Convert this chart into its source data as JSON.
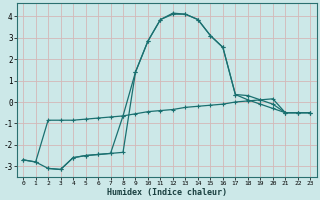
{
  "xlabel": "Humidex (Indice chaleur)",
  "bg_color": "#cce8e8",
  "grid_color": "#d4b8b8",
  "line_color": "#1a7070",
  "xlim": [
    -0.5,
    23.5
  ],
  "ylim": [
    -3.5,
    4.6
  ],
  "xticks": [
    0,
    1,
    2,
    3,
    4,
    5,
    6,
    7,
    8,
    9,
    10,
    11,
    12,
    13,
    14,
    15,
    16,
    17,
    18,
    19,
    20,
    21,
    22,
    23
  ],
  "yticks": [
    -3,
    -2,
    -1,
    0,
    1,
    2,
    3,
    4
  ],
  "series1_x": [
    0,
    1,
    2,
    3,
    4,
    5,
    6,
    7,
    8,
    9,
    10,
    11,
    12,
    13,
    14,
    15,
    16,
    17,
    18,
    19,
    20,
    21,
    22,
    23
  ],
  "series1_y": [
    -2.7,
    -2.8,
    -0.85,
    -0.85,
    -0.85,
    -0.8,
    -0.75,
    -0.7,
    -0.65,
    -0.55,
    -0.45,
    -0.4,
    -0.35,
    -0.25,
    -0.2,
    -0.15,
    -0.1,
    0.0,
    0.05,
    0.1,
    0.15,
    -0.5,
    -0.5,
    -0.5
  ],
  "series2_x": [
    2,
    3,
    4,
    5,
    6,
    7,
    8,
    9,
    10,
    11,
    12,
    13,
    14,
    15,
    16,
    17,
    18,
    19,
    20,
    21,
    22,
    23
  ],
  "series2_y": [
    -3.1,
    -3.15,
    -2.6,
    -2.5,
    -2.45,
    -2.4,
    -2.35,
    1.4,
    2.85,
    3.85,
    4.15,
    4.1,
    3.85,
    3.1,
    2.55,
    0.35,
    0.3,
    0.1,
    -0.1,
    -0.5,
    -0.5,
    -0.5
  ],
  "series3_x": [
    0,
    1,
    2,
    3,
    4,
    5,
    6,
    7,
    8,
    9,
    10,
    11,
    12,
    13,
    14,
    15,
    16,
    17,
    18,
    19,
    20,
    21,
    22,
    23
  ],
  "series3_y": [
    -2.7,
    -2.8,
    -3.1,
    -3.15,
    -2.6,
    -2.5,
    -2.45,
    -2.4,
    -0.65,
    1.4,
    2.85,
    3.85,
    4.1,
    4.1,
    3.85,
    3.1,
    2.55,
    0.35,
    0.1,
    -0.1,
    -0.3,
    -0.5,
    -0.5,
    -0.5
  ]
}
